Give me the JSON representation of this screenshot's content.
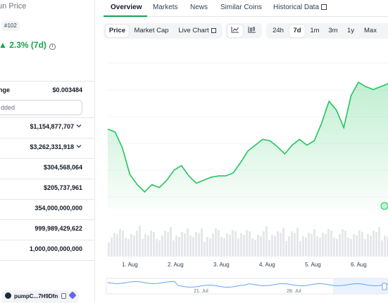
{
  "coin": {
    "title": "fun Price",
    "rank": "#102",
    "change": "2.3% (7d)",
    "change_arrow": "▲"
  },
  "stats": [
    {
      "label": "nge",
      "value": "$0.003484",
      "has_chevron": false
    },
    {
      "label": "",
      "value": "$1,154,877,707",
      "has_chevron": true
    },
    {
      "label": "",
      "value": "$3,262,331,918",
      "has_chevron": true
    },
    {
      "label": "",
      "value": "$304,568,064",
      "has_chevron": false
    },
    {
      "label": "",
      "value": "$205,737,961",
      "has_chevron": false
    },
    {
      "label": "",
      "value": "354,000,000,000",
      "has_chevron": false
    },
    {
      "label": "",
      "value": "999,989,429,622",
      "has_chevron": false
    },
    {
      "label": "",
      "value": "1,000,000,000,000",
      "has_chevron": false
    }
  ],
  "watchlist_text": "dded",
  "contract": {
    "label": "pumpC...7H9Dfn"
  },
  "tabs": [
    {
      "label": "Overview",
      "active": true
    },
    {
      "label": "Markets",
      "active": false
    },
    {
      "label": "News",
      "active": false
    },
    {
      "label": "Similar Coins",
      "active": false
    },
    {
      "label": "Historical Data",
      "active": false
    }
  ],
  "chart_types": [
    {
      "label": "Price",
      "active": true
    },
    {
      "label": "Market Cap",
      "active": false
    },
    {
      "label": "Live Chart",
      "active": false
    }
  ],
  "ranges": [
    {
      "label": "24h",
      "active": false
    },
    {
      "label": "7d",
      "active": true
    },
    {
      "label": "1m",
      "active": false
    },
    {
      "label": "3m",
      "active": false
    },
    {
      "label": "1y",
      "active": false
    },
    {
      "label": "Max",
      "active": false
    }
  ],
  "view_icons": [
    "line-chart-icon",
    "candlestick-icon"
  ],
  "colors": {
    "accent": "#16a34a",
    "line": "#22c55e",
    "volume": "#e5e7eb"
  },
  "chart_data": {
    "type": "line",
    "x_labels": [
      "1. Aug",
      "2. Aug",
      "3. Aug",
      "4. Aug",
      "5. Aug",
      "6. Aug"
    ],
    "navigator_labels": [
      "21. Jul",
      "28. Jul"
    ],
    "series": [
      {
        "values": [
          0.55,
          0.53,
          0.42,
          0.24,
          0.17,
          0.12,
          0.17,
          0.15,
          0.2,
          0.27,
          0.3,
          0.23,
          0.18,
          0.2,
          0.22,
          0.23,
          0.23,
          0.25,
          0.32,
          0.4,
          0.44,
          0.48,
          0.47,
          0.43,
          0.38,
          0.44,
          0.48,
          0.44,
          0.47,
          0.59,
          0.74,
          0.68,
          0.56,
          0.78,
          0.87,
          0.84,
          0.82,
          0.84,
          0.86
        ]
      }
    ]
  }
}
